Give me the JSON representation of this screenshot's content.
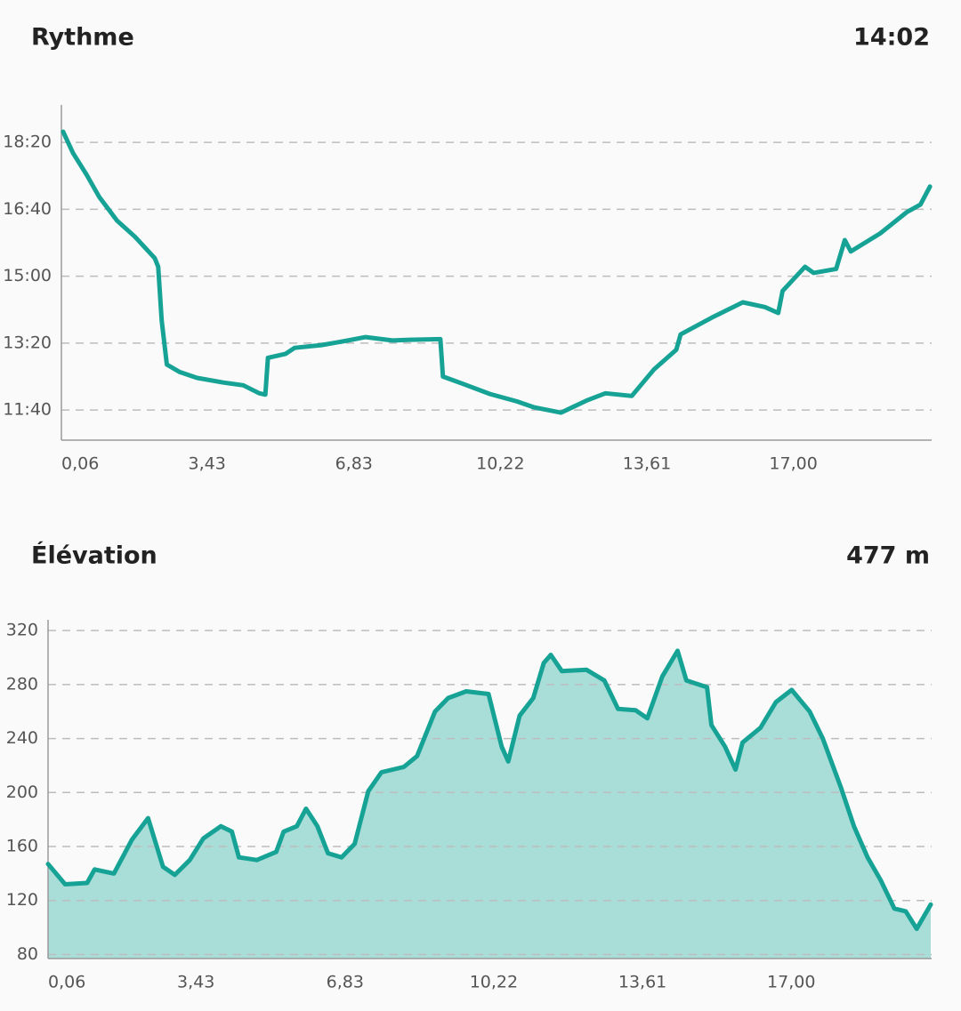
{
  "chart_data": [
    {
      "type": "line",
      "title": "Rythme",
      "summary": "14:02",
      "x": [
        0.1,
        0.33,
        0.64,
        0.94,
        1.35,
        1.76,
        2.22,
        2.3,
        2.38,
        2.5,
        2.79,
        3.2,
        3.82,
        4.27,
        4.64,
        4.78,
        4.84,
        5.25,
        5.46,
        6.08,
        6.69,
        7.1,
        7.72,
        8.13,
        8.83,
        8.89,
        9.36,
        9.98,
        10.6,
        11.0,
        11.62,
        12.24,
        12.65,
        13.26,
        13.78,
        14.29,
        14.39,
        15.11,
        15.83,
        16.34,
        16.65,
        16.75,
        17.27,
        17.47,
        17.99,
        18.19,
        18.33,
        19.01,
        19.63,
        19.94,
        20.16
      ],
      "series": [
        {
          "color": "#16a396",
          "values": [
            1116,
            1084,
            1052,
            1018,
            983,
            959,
            927,
            914,
            834,
            768,
            757,
            748,
            741,
            737,
            725,
            723,
            778,
            784,
            793,
            797,
            804,
            809,
            804,
            805,
            806,
            750,
            739,
            724,
            713,
            704,
            696,
            715,
            725,
            721,
            761,
            790,
            813,
            838,
            861,
            854,
            845,
            878,
            914,
            905,
            911,
            954,
            937,
            964,
            996,
            1007,
            1034
          ]
        }
      ],
      "xlim": [
        0.06,
        20.2
      ],
      "xticks": [
        {
          "value": 0.06,
          "label": "0,06"
        },
        {
          "value": 3.43,
          "label": "3,43"
        },
        {
          "value": 6.83,
          "label": "6,83"
        },
        {
          "value": 10.22,
          "label": "10,22"
        },
        {
          "value": 13.61,
          "label": "13,61"
        },
        {
          "value": 17.0,
          "label": "17,00"
        }
      ],
      "ylim": [
        655,
        1156
      ],
      "yticks": [
        {
          "value": 1100,
          "label": "18:20"
        },
        {
          "value": 1000,
          "label": "16:40"
        },
        {
          "value": 900,
          "label": "15:00"
        },
        {
          "value": 800,
          "label": "13:20"
        },
        {
          "value": 700,
          "label": "11:40"
        }
      ],
      "grid": true
    },
    {
      "type": "area",
      "title": "Élévation",
      "summary": "477 m",
      "x": [
        0.06,
        0.45,
        0.95,
        1.12,
        1.56,
        1.97,
        2.34,
        2.68,
        2.95,
        3.29,
        3.6,
        4.0,
        4.25,
        4.41,
        4.82,
        5.26,
        5.43,
        5.73,
        5.94,
        6.2,
        6.44,
        6.75,
        7.05,
        7.36,
        7.66,
        8.17,
        8.47,
        8.88,
        9.18,
        9.59,
        10.1,
        10.4,
        10.55,
        10.81,
        11.12,
        11.36,
        11.52,
        11.77,
        12.33,
        12.74,
        13.05,
        13.45,
        13.72,
        14.06,
        14.41,
        14.61,
        15.08,
        15.18,
        15.49,
        15.73,
        15.89,
        16.3,
        16.65,
        17.01,
        17.42,
        17.72,
        18.13,
        18.43,
        18.74,
        19.04,
        19.35,
        19.61,
        19.86,
        20.18
      ],
      "series": [
        {
          "color": "#16a396",
          "fill": "#a9ddd8",
          "values": [
            147,
            132,
            133,
            143,
            140,
            165,
            181,
            145,
            139,
            150,
            166,
            175,
            171,
            152,
            150,
            156,
            171,
            175,
            188,
            175,
            155,
            152,
            162,
            201,
            215,
            219,
            227,
            260,
            270,
            275,
            273,
            234,
            223,
            257,
            270,
            296,
            302,
            290,
            291,
            283,
            262,
            261,
            255,
            286,
            305,
            283,
            278,
            250,
            234,
            217,
            237,
            248,
            267,
            276,
            260,
            240,
            204,
            175,
            152,
            135,
            114,
            112,
            99,
            117
          ]
        }
      ],
      "xlim": [
        0.06,
        20.2
      ],
      "xticks": [
        {
          "value": 0.06,
          "label": "0,06"
        },
        {
          "value": 3.43,
          "label": "3,43"
        },
        {
          "value": 6.83,
          "label": "6,83"
        },
        {
          "value": 10.22,
          "label": "10,22"
        },
        {
          "value": 13.61,
          "label": "13,61"
        },
        {
          "value": 17.0,
          "label": "17,00"
        }
      ],
      "ylim": [
        77,
        328
      ],
      "yticks": [
        320,
        280,
        240,
        200,
        160,
        120,
        80
      ],
      "grid": true
    }
  ]
}
